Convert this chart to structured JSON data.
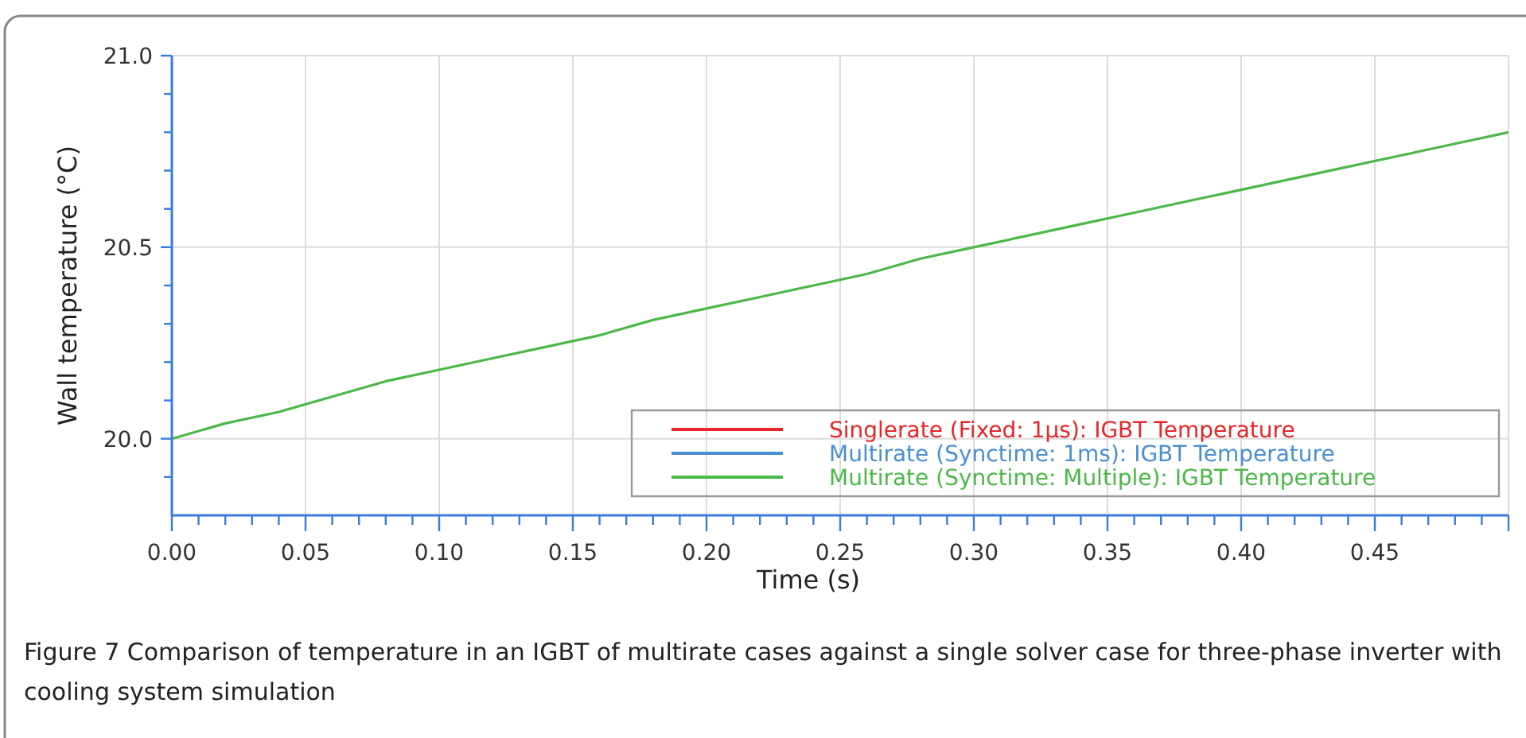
{
  "chart_data": {
    "type": "line",
    "xlabel": "Time (s)",
    "ylabel": "Wall temperature (°C)",
    "x": [
      0,
      0.02,
      0.04,
      0.06,
      0.08,
      0.1,
      0.12,
      0.14,
      0.16,
      0.18,
      0.2,
      0.22,
      0.24,
      0.26,
      0.28,
      0.3,
      0.32,
      0.34,
      0.36,
      0.38,
      0.4,
      0.42,
      0.44,
      0.46,
      0.48,
      0.5
    ],
    "series": [
      {
        "name": "Singlerate (Fixed: 1µs): IGBT Temperature",
        "color": "#e8262a",
        "values": [
          null,
          null,
          null,
          null,
          null,
          null,
          null,
          null,
          null,
          null,
          null,
          null,
          null,
          null,
          null,
          null,
          null,
          null,
          null,
          null,
          null,
          null,
          null,
          null,
          null,
          null
        ]
      },
      {
        "name": "Multirate (Synctime: 1ms): IGBT Temperature",
        "color": "#4a8fd0",
        "values": [
          null,
          null,
          null,
          null,
          null,
          null,
          null,
          null,
          null,
          null,
          null,
          null,
          null,
          null,
          null,
          null,
          null,
          null,
          null,
          null,
          null,
          null,
          null,
          null,
          null,
          null
        ]
      },
      {
        "name": "Multirate (Synctime: Multiple): IGBT Temperature",
        "color": "#4cb848",
        "values": [
          20.0,
          20.04,
          20.07,
          20.11,
          20.15,
          20.18,
          20.21,
          20.24,
          20.27,
          20.31,
          20.34,
          20.37,
          20.4,
          20.43,
          20.47,
          20.5,
          20.53,
          20.56,
          20.59,
          20.62,
          20.65,
          20.68,
          20.71,
          20.74,
          20.77,
          20.8
        ]
      }
    ],
    "xlim": [
      0,
      0.5
    ],
    "xticks": [
      {
        "value": 0,
        "label": "0.00"
      },
      {
        "value": 0.01,
        "label": null
      },
      {
        "value": 0.02,
        "label": null
      },
      {
        "value": 0.03,
        "label": null
      },
      {
        "value": 0.04,
        "label": null
      },
      {
        "value": 0.05,
        "label": "0.05"
      },
      {
        "value": 0.06,
        "label": null
      },
      {
        "value": 0.07,
        "label": null
      },
      {
        "value": 0.08,
        "label": null
      },
      {
        "value": 0.09,
        "label": null
      },
      {
        "value": 0.1,
        "label": "0.10"
      },
      {
        "value": 0.11,
        "label": null
      },
      {
        "value": 0.12,
        "label": null
      },
      {
        "value": 0.13,
        "label": null
      },
      {
        "value": 0.14,
        "label": null
      },
      {
        "value": 0.15,
        "label": "0.15"
      },
      {
        "value": 0.16,
        "label": null
      },
      {
        "value": 0.17,
        "label": null
      },
      {
        "value": 0.18,
        "label": null
      },
      {
        "value": 0.19,
        "label": null
      },
      {
        "value": 0.2,
        "label": "0.20"
      },
      {
        "value": 0.21,
        "label": null
      },
      {
        "value": 0.22,
        "label": null
      },
      {
        "value": 0.23,
        "label": null
      },
      {
        "value": 0.24,
        "label": null
      },
      {
        "value": 0.25,
        "label": "0.25"
      },
      {
        "value": 0.26,
        "label": null
      },
      {
        "value": 0.27,
        "label": null
      },
      {
        "value": 0.28,
        "label": null
      },
      {
        "value": 0.29,
        "label": null
      },
      {
        "value": 0.3,
        "label": "0.30"
      },
      {
        "value": 0.31,
        "label": null
      },
      {
        "value": 0.32,
        "label": null
      },
      {
        "value": 0.33,
        "label": null
      },
      {
        "value": 0.34,
        "label": null
      },
      {
        "value": 0.35,
        "label": "0.35"
      },
      {
        "value": 0.36,
        "label": null
      },
      {
        "value": 0.37,
        "label": null
      },
      {
        "value": 0.38,
        "label": null
      },
      {
        "value": 0.39,
        "label": null
      },
      {
        "value": 0.4,
        "label": "0.40"
      },
      {
        "value": 0.41,
        "label": null
      },
      {
        "value": 0.42,
        "label": null
      },
      {
        "value": 0.43,
        "label": null
      },
      {
        "value": 0.44,
        "label": null
      },
      {
        "value": 0.45,
        "label": "0.45"
      },
      {
        "value": 0.46,
        "label": null
      },
      {
        "value": 0.47,
        "label": null
      },
      {
        "value": 0.48,
        "label": null
      },
      {
        "value": 0.49,
        "label": null
      },
      {
        "value": 0.5,
        "label": null
      }
    ],
    "ylim": [
      19.8,
      21.0
    ],
    "yticks": [
      {
        "value": 19.9,
        "label": null
      },
      {
        "value": 20.0,
        "label": "20.0"
      },
      {
        "value": 20.1,
        "label": null
      },
      {
        "value": 20.2,
        "label": null
      },
      {
        "value": 20.3,
        "label": null
      },
      {
        "value": 20.4,
        "label": null
      },
      {
        "value": 20.5,
        "label": "20.5"
      },
      {
        "value": 20.6,
        "label": null
      },
      {
        "value": 20.7,
        "label": null
      },
      {
        "value": 20.8,
        "label": null
      },
      {
        "value": 20.9,
        "label": null
      },
      {
        "value": 21.0,
        "label": "21.0"
      }
    ],
    "grid": true,
    "legend": "bottom right",
    "line_style": "solid",
    "marker": "none",
    "annotations": [
      "Figure 7  Comparison of temperature in an IGBT of multirate cases against a single solver case for three-phase inverter with cooling system simulation"
    ]
  }
}
